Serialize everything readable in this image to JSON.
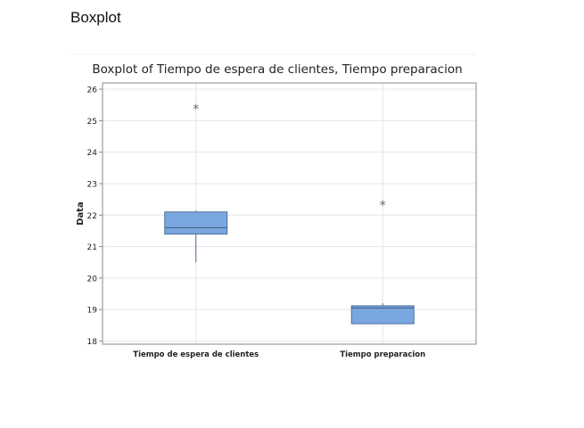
{
  "page": {
    "heading": "Boxplot"
  },
  "chart_data": {
    "type": "boxplot",
    "title": "Boxplot of Tiempo de espera de clientes, Tiempo preparacion",
    "xlabel": "",
    "ylabel": "Data",
    "ylim": [
      17.9,
      26.2
    ],
    "yticks": [
      18,
      19,
      20,
      21,
      22,
      23,
      24,
      25,
      26
    ],
    "grid": true,
    "categories": [
      "Tiempo de espera de clientes",
      "Tiempo preparacion"
    ],
    "series": [
      {
        "category": "Tiempo de espera de clientes",
        "whisker_low": 20.5,
        "q1": 21.4,
        "median": 21.6,
        "q3": 22.1,
        "whisker_high": 22.15,
        "outliers": [
          25.4
        ]
      },
      {
        "category": "Tiempo preparacion",
        "whisker_low": 18.55,
        "q1": 18.55,
        "median": 19.05,
        "q3": 19.12,
        "whisker_high": 19.2,
        "outliers": [
          22.35
        ]
      }
    ],
    "colors": {
      "box_fill": "#7BA7E1",
      "box_stroke": "#4D6E9A",
      "grid": "#E6E6E6",
      "axis": "#888888",
      "outlier": "#666666"
    }
  }
}
